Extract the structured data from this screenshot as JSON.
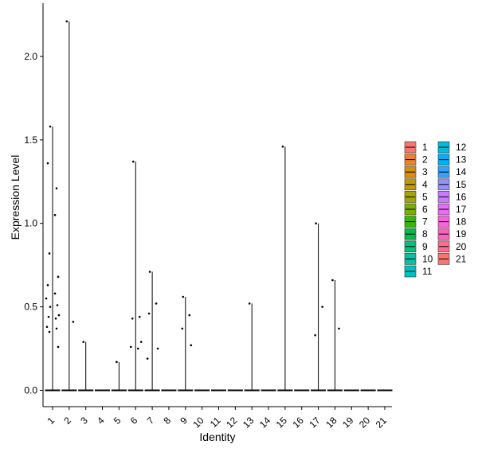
{
  "chart_data": {
    "type": "violin",
    "xlabel": "Identity",
    "ylabel": "Expression Level",
    "categories": [
      "1",
      "2",
      "3",
      "4",
      "5",
      "6",
      "7",
      "8",
      "9",
      "10",
      "11",
      "12",
      "13",
      "14",
      "15",
      "16",
      "17",
      "18",
      "19",
      "20",
      "21"
    ],
    "y_ticks": [
      0.0,
      0.5,
      1.0,
      1.5,
      2.0
    ],
    "y_tick_labels": [
      "0.0",
      "0.5",
      "1.0",
      "1.5",
      "2.0"
    ],
    "ylim": [
      -0.11,
      2.33
    ],
    "grid": false,
    "legend_position": "right",
    "legend_columns": [
      [
        "1",
        "2",
        "3",
        "4",
        "5",
        "6",
        "7",
        "8",
        "9",
        "10",
        "11"
      ],
      [
        "12",
        "13",
        "14",
        "15",
        "16",
        "17",
        "18",
        "19",
        "20",
        "21"
      ]
    ],
    "colors": [
      "#F8766D",
      "#EA8331",
      "#D89000",
      "#C09B00",
      "#A3A500",
      "#7CAE00",
      "#39B600",
      "#00BB4E",
      "#00BF7D",
      "#00C1A3",
      "#00BFC4",
      "#00BAE0",
      "#00B0F6",
      "#35A2FF",
      "#9590FF",
      "#C77CFF",
      "#E76BF3",
      "#FA62DB",
      "#FF62BC",
      "#FF6C91",
      "#F8766D"
    ],
    "series": [
      {
        "name": "1",
        "max": 1.58,
        "points": [
          1.58,
          1.21,
          0.82,
          0.68,
          0.63,
          0.58,
          0.55,
          0.51,
          0.5,
          0.45,
          0.44,
          0.43,
          0.38,
          0.37,
          0.35,
          0.26,
          1.36,
          1.05
        ]
      },
      {
        "name": "2",
        "max": 2.21,
        "points": [
          2.21,
          0.41
        ]
      },
      {
        "name": "3",
        "max": 0.29,
        "points": [
          0.29
        ]
      },
      {
        "name": "4",
        "max": 0.0,
        "points": []
      },
      {
        "name": "5",
        "max": 0.17,
        "points": [
          0.17
        ]
      },
      {
        "name": "6",
        "max": 1.37,
        "points": [
          1.37,
          0.44,
          0.43,
          0.29,
          0.26,
          0.25
        ]
      },
      {
        "name": "7",
        "max": 0.71,
        "points": [
          0.71,
          0.52,
          0.46,
          0.25,
          0.19
        ]
      },
      {
        "name": "8",
        "max": 0.0,
        "points": []
      },
      {
        "name": "9",
        "max": 0.56,
        "points": [
          0.56,
          0.45,
          0.37,
          0.27
        ]
      },
      {
        "name": "10",
        "max": 0.0,
        "points": []
      },
      {
        "name": "11",
        "max": 0.0,
        "points": []
      },
      {
        "name": "12",
        "max": 0.0,
        "points": []
      },
      {
        "name": "13",
        "max": 0.52,
        "points": [
          0.52
        ]
      },
      {
        "name": "14",
        "max": 0.0,
        "points": []
      },
      {
        "name": "15",
        "max": 1.46,
        "points": [
          1.46
        ]
      },
      {
        "name": "16",
        "max": 0.0,
        "points": []
      },
      {
        "name": "17",
        "max": 1.0,
        "points": [
          1.0,
          0.5,
          0.33
        ]
      },
      {
        "name": "18",
        "max": 0.66,
        "points": [
          0.66,
          0.37
        ]
      },
      {
        "name": "19",
        "max": 0.0,
        "points": []
      },
      {
        "name": "20",
        "max": 0.0,
        "points": []
      },
      {
        "name": "21",
        "max": 0.0,
        "points": []
      }
    ]
  }
}
